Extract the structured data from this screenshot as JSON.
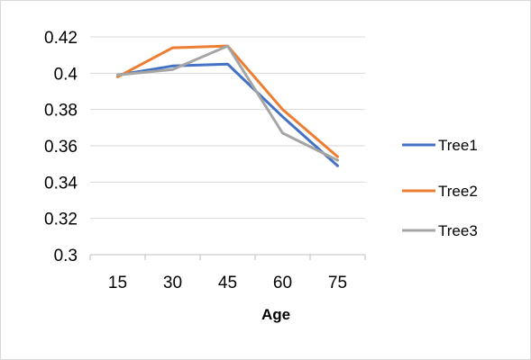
{
  "chart_data": {
    "type": "line",
    "title": "",
    "xlabel": "Age",
    "ylabel": "",
    "categories": [
      "15",
      "30",
      "45",
      "60",
      "75"
    ],
    "ylim": [
      0.3,
      0.42
    ],
    "yticks": [
      "0.3",
      "0.32",
      "0.34",
      "0.36",
      "0.38",
      "0.4",
      "0.42"
    ],
    "grid": true,
    "legend_position": "right",
    "series": [
      {
        "name": "Tree1",
        "color": "#4472C4",
        "values": [
          0.399,
          0.404,
          0.405,
          0.376,
          0.349
        ]
      },
      {
        "name": "Tree2",
        "color": "#ED7D31",
        "values": [
          0.398,
          0.414,
          0.415,
          0.38,
          0.354
        ]
      },
      {
        "name": "Tree3",
        "color": "#A5A5A5",
        "values": [
          0.399,
          0.402,
          0.415,
          0.367,
          0.352
        ]
      }
    ]
  }
}
